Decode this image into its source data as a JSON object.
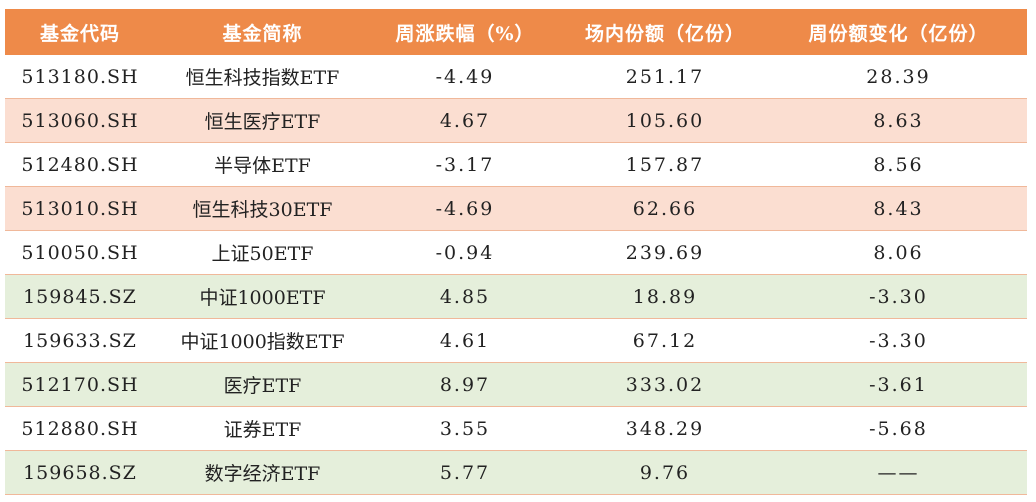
{
  "colors": {
    "header_bg": "#ee8a49",
    "row_orange": "#fbded1",
    "row_green": "#e5efdb",
    "row_white": "#ffffff"
  },
  "table": {
    "headers": [
      "基金代码",
      "基金简称",
      "周涨跌幅（%）",
      "场内份额（亿份）",
      "周份额变化（亿份）"
    ],
    "rows": [
      {
        "code": "513180.SH",
        "name": "恒生科技指数ETF",
        "weekly_change": "-4.49",
        "shares": "251.17",
        "share_change": "28.39",
        "tint": "white"
      },
      {
        "code": "513060.SH",
        "name": "恒生医疗ETF",
        "weekly_change": "4.67",
        "shares": "105.60",
        "share_change": "8.63",
        "tint": "orange"
      },
      {
        "code": "512480.SH",
        "name": "半导体ETF",
        "weekly_change": "-3.17",
        "shares": "157.87",
        "share_change": "8.56",
        "tint": "white"
      },
      {
        "code": "513010.SH",
        "name": "恒生科技30ETF",
        "weekly_change": "-4.69",
        "shares": "62.66",
        "share_change": "8.43",
        "tint": "orange"
      },
      {
        "code": "510050.SH",
        "name": "上证50ETF",
        "weekly_change": "-0.94",
        "shares": "239.69",
        "share_change": "8.06",
        "tint": "white"
      },
      {
        "code": "159845.SZ",
        "name": "中证1000ETF",
        "weekly_change": "4.85",
        "shares": "18.89",
        "share_change": "-3.30",
        "tint": "green"
      },
      {
        "code": "159633.SZ",
        "name": "中证1000指数ETF",
        "weekly_change": "4.61",
        "shares": "67.12",
        "share_change": "-3.30",
        "tint": "white"
      },
      {
        "code": "512170.SH",
        "name": "医疗ETF",
        "weekly_change": "8.97",
        "shares": "333.02",
        "share_change": "-3.61",
        "tint": "green"
      },
      {
        "code": "512880.SH",
        "name": "证券ETF",
        "weekly_change": "3.55",
        "shares": "348.29",
        "share_change": "-5.68",
        "tint": "white"
      },
      {
        "code": "159658.SZ",
        "name": "数字经济ETF",
        "weekly_change": "5.77",
        "shares": "9.76",
        "share_change": "——",
        "tint": "green"
      }
    ]
  }
}
